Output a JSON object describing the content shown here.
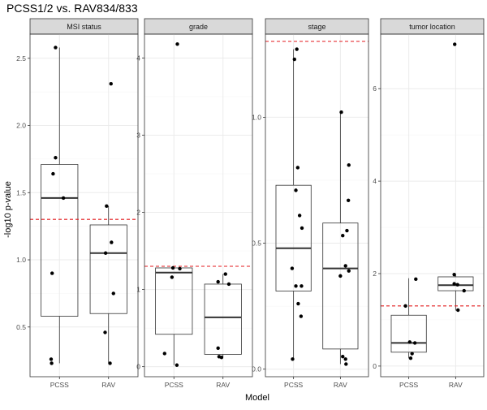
{
  "title": "PCSS1/2 vs. RAV834/833",
  "xlabel": "Model",
  "ylabel": "-log10 p-value",
  "colors": {
    "strip_bg": "#d9d9d9",
    "strip_border": "#333333",
    "panel_border": "#333333",
    "grid_major": "#ebebeb",
    "grid_minor": "#f4f4f4",
    "threshold": "#e31a1c",
    "point": "#000000",
    "box_line": "#333333",
    "axis_text": "#4d4d4d"
  },
  "chart_data": {
    "type": "boxplot",
    "title": "PCSS1/2 vs. RAV834/833",
    "xlabel": "Model",
    "ylabel": "-log10 p-value",
    "threshold": 1.30103,
    "threshold_style": "dashed red horizontal line",
    "categories": [
      "PCSS",
      "RAV"
    ],
    "facets": [
      {
        "name": "MSI status",
        "ylim": [
          0.13,
          2.68
        ],
        "yticks": [
          0.5,
          1.0,
          1.5,
          2.0,
          2.5
        ],
        "ytick_labels": [
          "0.5",
          "1.0",
          "1.5",
          "2.0",
          "2.5"
        ],
        "groups": [
          {
            "category": "PCSS",
            "box": {
              "whisker_low": 0.23,
              "q1": 0.58,
              "median": 1.46,
              "q3": 1.71,
              "whisker_high": 2.58
            },
            "points": [
              [
                0.92,
                2.58
              ],
              [
                0.92,
                1.76
              ],
              [
                0.87,
                1.64
              ],
              [
                1.08,
                1.46
              ],
              [
                0.85,
                0.9
              ],
              [
                0.83,
                0.26
              ],
              [
                0.84,
                0.23
              ]
            ]
          },
          {
            "category": "RAV",
            "box": {
              "whisker_low": 0.23,
              "q1": 0.6,
              "median": 1.05,
              "q3": 1.26,
              "whisker_high": 1.4
            },
            "points": [
              [
                2.05,
                2.31
              ],
              [
                1.96,
                1.4
              ],
              [
                2.06,
                1.13
              ],
              [
                1.94,
                1.05
              ],
              [
                2.1,
                0.75
              ],
              [
                1.93,
                0.46
              ],
              [
                2.03,
                0.23
              ]
            ]
          }
        ]
      },
      {
        "name": "grade",
        "ylim": [
          -0.13,
          4.31
        ],
        "yticks": [
          0,
          1,
          2,
          3,
          4
        ],
        "ytick_labels": [
          "0",
          "1",
          "2",
          "3",
          "4"
        ],
        "groups": [
          {
            "category": "PCSS",
            "box": {
              "whisker_low": 0.02,
              "q1": 0.42,
              "median": 1.22,
              "q3": 1.28,
              "whisker_high": 1.3
            },
            "points": [
              [
                1.07,
                4.18
              ],
              [
                0.98,
                1.28
              ],
              [
                1.12,
                1.27
              ],
              [
                0.96,
                1.16
              ],
              [
                0.81,
                0.17
              ],
              [
                1.06,
                0.02
              ]
            ]
          },
          {
            "category": "RAV",
            "box": {
              "whisker_low": 0.12,
              "q1": 0.16,
              "median": 0.64,
              "q3": 1.07,
              "whisker_high": 1.2
            },
            "points": [
              [
                2.05,
                1.2
              ],
              [
                1.9,
                1.1
              ],
              [
                2.12,
                1.07
              ],
              [
                1.9,
                0.24
              ],
              [
                1.92,
                0.13
              ],
              [
                1.97,
                0.12
              ]
            ]
          }
        ]
      },
      {
        "name": "stage",
        "ylim": [
          -0.03,
          1.33
        ],
        "yticks": [
          0.0,
          0.5,
          1.0
        ],
        "ytick_labels": [
          "0.0",
          "0.5",
          "1.0"
        ],
        "groups": [
          {
            "category": "PCSS",
            "box": {
              "whisker_low": 0.04,
              "q1": 0.31,
              "median": 0.48,
              "q3": 0.73,
              "whisker_high": 1.27
            },
            "points": [
              [
                1.07,
                1.27
              ],
              [
                1.02,
                1.23
              ],
              [
                1.09,
                0.8
              ],
              [
                1.05,
                0.71
              ],
              [
                1.13,
                0.61
              ],
              [
                1.18,
                0.56
              ],
              [
                0.97,
                0.4
              ],
              [
                1.05,
                0.33
              ],
              [
                1.17,
                0.33
              ],
              [
                1.1,
                0.26
              ],
              [
                1.16,
                0.21
              ],
              [
                0.98,
                0.04
              ]
            ]
          },
          {
            "category": "RAV",
            "box": {
              "whisker_low": 0.02,
              "q1": 0.08,
              "median": 0.4,
              "q3": 0.58,
              "whisker_high": 1.02
            },
            "points": [
              [
                2.02,
                1.02
              ],
              [
                2.18,
                0.81
              ],
              [
                2.17,
                0.67
              ],
              [
                2.14,
                0.55
              ],
              [
                2.05,
                0.53
              ],
              [
                2.11,
                0.41
              ],
              [
                2.18,
                0.39
              ],
              [
                2.0,
                0.37
              ],
              [
                2.05,
                0.05
              ],
              [
                2.11,
                0.04
              ],
              [
                2.12,
                0.02
              ]
            ]
          }
        ]
      },
      {
        "name": "tumor location",
        "ylim": [
          -0.23,
          7.18
        ],
        "yticks": [
          0,
          2,
          4,
          6
        ],
        "ytick_labels": [
          "0",
          "2",
          "4",
          "6"
        ],
        "groups": [
          {
            "category": "PCSS",
            "box": {
              "whisker_low": 0.17,
              "q1": 0.3,
              "median": 0.5,
              "q3": 1.1,
              "whisker_high": 1.9
            },
            "points": [
              [
                1.15,
                1.88
              ],
              [
                0.93,
                1.3
              ],
              [
                1.02,
                0.52
              ],
              [
                1.13,
                0.5
              ],
              [
                1.07,
                0.27
              ],
              [
                1.04,
                0.17
              ]
            ]
          },
          {
            "category": "RAV",
            "box": {
              "whisker_low": 1.2,
              "q1": 1.63,
              "median": 1.75,
              "q3": 1.93,
              "whisker_high": 1.97
            },
            "points": [
              [
                1.98,
                6.96
              ],
              [
                1.97,
                1.98
              ],
              [
                1.97,
                1.78
              ],
              [
                2.04,
                1.76
              ],
              [
                2.18,
                1.63
              ],
              [
                2.05,
                1.21
              ]
            ]
          }
        ]
      }
    ]
  }
}
